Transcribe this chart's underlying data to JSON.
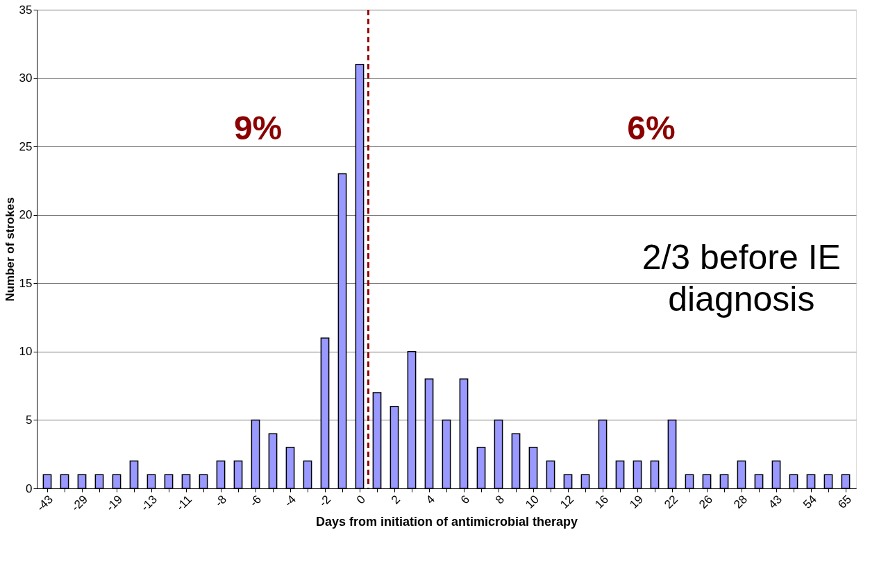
{
  "chart_data": {
    "type": "bar",
    "xlabel": "Days from initiation of antimicrobial therapy",
    "ylabel": "Number of strokes",
    "categories": [
      "-43",
      null,
      "-29",
      null,
      "-19",
      null,
      "-13",
      null,
      "-11",
      null,
      "-8",
      null,
      "-6",
      null,
      "-4",
      null,
      "-2",
      null,
      "0",
      null,
      "2",
      null,
      "4",
      null,
      "6",
      null,
      "8",
      null,
      "10",
      null,
      "12",
      null,
      "16",
      null,
      "19",
      null,
      "22",
      null,
      "26",
      null,
      "28",
      null,
      "43",
      null,
      "54",
      null,
      "65"
    ],
    "series": [
      {
        "color": "#9999ff",
        "values": [
          1,
          1,
          1,
          1,
          1,
          2,
          1,
          1,
          1,
          1,
          2,
          2,
          5,
          4,
          3,
          2,
          11,
          23,
          31,
          7,
          6,
          10,
          8,
          5,
          8,
          3,
          5,
          4,
          3,
          2,
          1,
          1,
          5,
          2,
          2,
          2,
          5,
          1,
          1,
          1,
          2,
          1,
          2,
          1,
          1,
          1,
          1
        ]
      }
    ],
    "ylim": [
      0,
      35
    ],
    "yticks": [
      0,
      5,
      10,
      15,
      20,
      25,
      30,
      35
    ],
    "grid": "y",
    "ref_lines": [
      {
        "axis": "x",
        "value": "0",
        "color": "#990000",
        "line_style": "dashed"
      }
    ],
    "annotations": [
      "9%",
      "6%",
      "2/3 before IE diagnosis"
    ]
  }
}
